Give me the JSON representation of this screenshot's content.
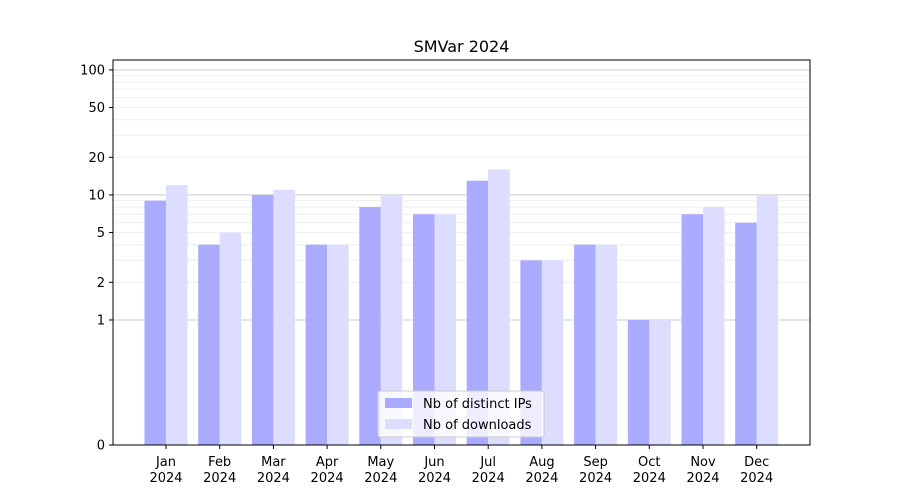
{
  "chart_data": {
    "type": "bar",
    "title": "SMVar 2024",
    "xlabel": "",
    "ylabel": "",
    "y_scale": "symlog",
    "ylim": [
      0,
      120
    ],
    "yticks": [
      0,
      1,
      2,
      5,
      10,
      20,
      50,
      100
    ],
    "categories": [
      {
        "month": "Jan",
        "year": "2024"
      },
      {
        "month": "Feb",
        "year": "2024"
      },
      {
        "month": "Mar",
        "year": "2024"
      },
      {
        "month": "Apr",
        "year": "2024"
      },
      {
        "month": "May",
        "year": "2024"
      },
      {
        "month": "Jun",
        "year": "2024"
      },
      {
        "month": "Jul",
        "year": "2024"
      },
      {
        "month": "Aug",
        "year": "2024"
      },
      {
        "month": "Sep",
        "year": "2024"
      },
      {
        "month": "Oct",
        "year": "2024"
      },
      {
        "month": "Nov",
        "year": "2024"
      },
      {
        "month": "Dec",
        "year": "2024"
      }
    ],
    "series": [
      {
        "name": "Nb of distinct IPs",
        "color": "#aaaaff",
        "values": [
          9,
          4,
          10,
          4,
          8,
          7,
          13,
          3,
          4,
          1,
          7,
          6
        ]
      },
      {
        "name": "Nb of downloads",
        "color": "#ddddff",
        "values": [
          12,
          5,
          11,
          4,
          10,
          7,
          16,
          3,
          4,
          1,
          8,
          10
        ]
      }
    ],
    "grid": true,
    "legend_position": "bottom-center"
  }
}
